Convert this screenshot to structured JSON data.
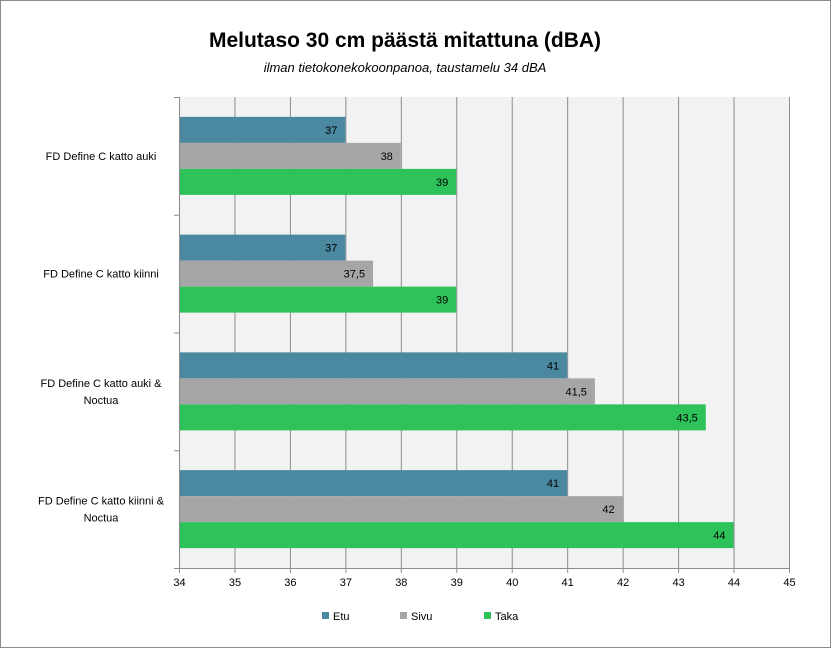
{
  "chart_data": {
    "type": "bar",
    "orientation": "horizontal",
    "title": "Melutaso 30 cm päästä mitattuna (dBA)",
    "subtitle": "ilman tietokonekokoonpanoa,  taustamelu 34 dBA",
    "categories": [
      [
        "FD Define C katto auki"
      ],
      [
        "FD Define C katto kiinni"
      ],
      [
        "FD Define C katto auki &",
        "Noctua"
      ],
      [
        "FD Define C katto kiinni &",
        "Noctua"
      ]
    ],
    "series": [
      {
        "name": "Etu",
        "color": "#4a89a0",
        "values": [
          37,
          37,
          41,
          41
        ],
        "labels": [
          "37",
          "37",
          "41",
          "41"
        ]
      },
      {
        "name": "Sivu",
        "color": "#a6a6a6",
        "values": [
          38,
          37.5,
          41.5,
          42
        ],
        "labels": [
          "38",
          "37,5",
          "41,5",
          "42"
        ]
      },
      {
        "name": "Taka",
        "color": "#2ec35a",
        "values": [
          39,
          39,
          43.5,
          44
        ],
        "labels": [
          "39",
          "39",
          "43,5",
          "44"
        ]
      }
    ],
    "xlim": [
      34,
      45
    ],
    "xticks": [
      "34",
      "35",
      "36",
      "37",
      "38",
      "39",
      "40",
      "41",
      "42",
      "43",
      "44",
      "45"
    ],
    "grid": true,
    "legend_position": "bottom"
  }
}
